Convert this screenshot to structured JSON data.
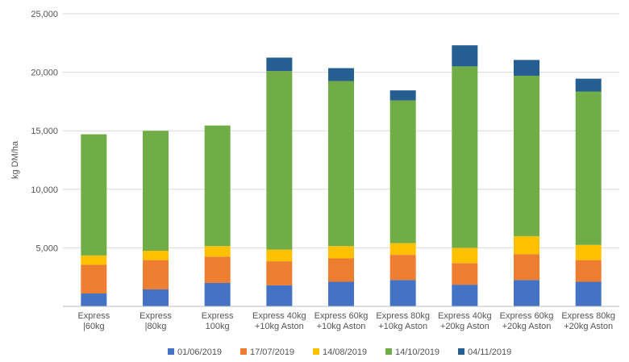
{
  "chart_data": {
    "type": "bar",
    "stacked": true,
    "title": "",
    "xlabel": "",
    "ylabel": "kg DM/ha",
    "ylim": [
      0,
      25000
    ],
    "yticks": [
      "0",
      "5,000",
      "10,000",
      "15,000",
      "20,000",
      "25,000"
    ],
    "grid": true,
    "legend_position": "bottom",
    "categories": [
      [
        "Express",
        "|60kg"
      ],
      [
        "Express",
        "|80kg"
      ],
      [
        "Express",
        "100kg"
      ],
      [
        "Express 40kg",
        "+10kg Aston"
      ],
      [
        "Express 60kg",
        "+10kg Aston"
      ],
      [
        "Express 80kg",
        "+10kg Aston"
      ],
      [
        "Express 40kg",
        "+20kg Aston"
      ],
      [
        "Express 60kg",
        "+20kg Aston"
      ],
      [
        "Express 80kg",
        "+20kg Aston"
      ]
    ],
    "series": [
      {
        "name": "01/06/2019",
        "color": "#4472c4",
        "values": [
          1100,
          1450,
          2000,
          1800,
          2100,
          2250,
          1850,
          2250,
          2100
        ]
      },
      {
        "name": "17/07/2019",
        "color": "#ed7d31",
        "values": [
          2450,
          2500,
          2250,
          2050,
          2000,
          2150,
          1850,
          2200,
          1850
        ]
      },
      {
        "name": "14/08/2019",
        "color": "#ffc000",
        "values": [
          800,
          800,
          900,
          1000,
          1050,
          1000,
          1300,
          1550,
          1300
        ]
      },
      {
        "name": "14/10/2019",
        "color": "#70ad47",
        "values": [
          10350,
          10250,
          10300,
          15250,
          14100,
          12200,
          15500,
          13700,
          13100
        ]
      },
      {
        "name": "04/11/2019",
        "color": "#255e91",
        "values": [
          0,
          0,
          0,
          1150,
          1100,
          850,
          1800,
          1350,
          1100
        ]
      }
    ]
  }
}
